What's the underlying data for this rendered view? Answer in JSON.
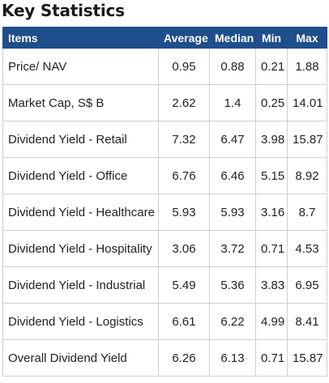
{
  "title": "Key Statistics",
  "table": {
    "headers": [
      "Items",
      "Average",
      "Median",
      "Min",
      "Max"
    ],
    "rows": [
      [
        "Price/ NAV",
        "0.95",
        "0.88",
        "0.21",
        "1.88"
      ],
      [
        "Market Cap, S$ B",
        "2.62",
        "1.4",
        "0.25",
        "14.01"
      ],
      [
        "Dividend Yield - Retail",
        "7.32",
        "6.47",
        "3.98",
        "15.87"
      ],
      [
        "Dividend Yield - Office",
        "6.76",
        "6.46",
        "5.15",
        "8.92"
      ],
      [
        "Dividend Yield - Healthcare",
        "5.93",
        "5.93",
        "3.16",
        "8.7"
      ],
      [
        "Dividend Yield - Hospitality",
        "3.06",
        "3.72",
        "0.71",
        "4.53"
      ],
      [
        "Dividend Yield - Industrial",
        "5.49",
        "5.36",
        "3.83",
        "6.95"
      ],
      [
        "Dividend Yield - Logistics",
        "6.61",
        "6.22",
        "4.99",
        "8.41"
      ],
      [
        "Overall Dividend Yield",
        "6.26",
        "6.13",
        "0.71",
        "15.87"
      ]
    ]
  },
  "colors": {
    "header_bg": "#1f4e8c",
    "header_text": "#ffffff",
    "border": "#cfcfcf"
  }
}
